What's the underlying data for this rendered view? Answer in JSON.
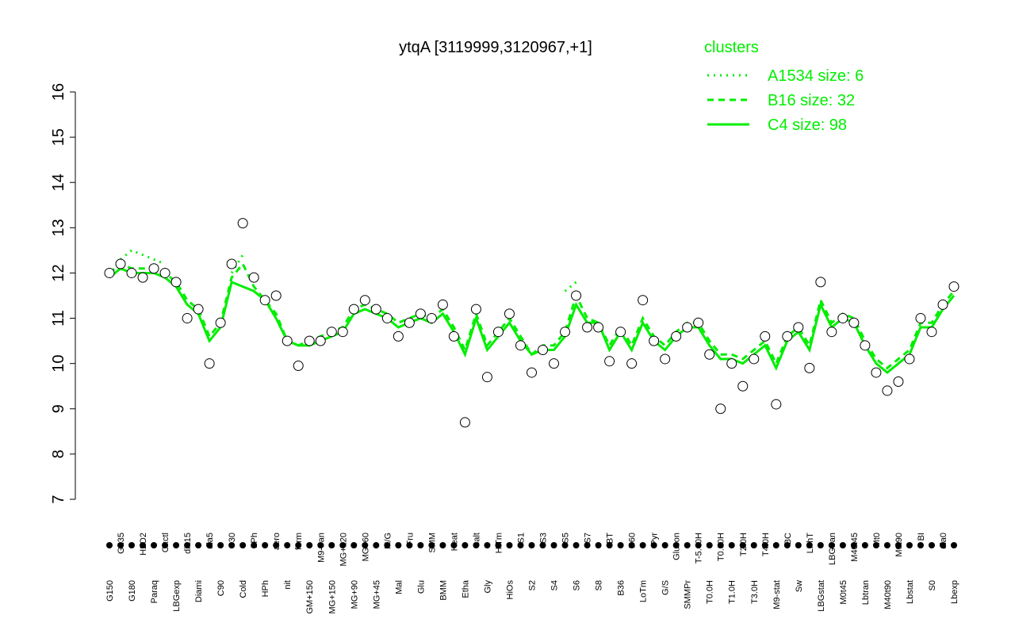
{
  "chart_data": {
    "type": "line",
    "title": "ytqA [3119999,3120967,+1]",
    "legend_title": "clusters",
    "categories": [
      "G150",
      "G135",
      "G180",
      "H2O2",
      "Paraq",
      "Oxctl",
      "LBGexp",
      "dia15",
      "Diami",
      "dia5",
      "C90",
      "C30",
      "Cold",
      "LPh",
      "HPh",
      "aero",
      "nit",
      "ferm",
      "GM+150",
      "M9-tran",
      "MG+150",
      "MG+120",
      "MG+90",
      "MG+60",
      "MG+45",
      "M/G",
      "Mal",
      "Fru",
      "Glu",
      "SMM",
      "BMM",
      "Heat",
      "Etha",
      "Salt",
      "Gly",
      "HiTm",
      "HiOs",
      "S1",
      "S2",
      "S3",
      "S4",
      "S5",
      "S6",
      "S7",
      "S8",
      "BT",
      "B36",
      "B60",
      "LoTm",
      "Pyr",
      "G/S",
      "Glucon",
      "SMMPr",
      "T-5.40H",
      "T0.0H",
      "T0.30H",
      "T1.0H",
      "T2.0H",
      "T3.0H",
      "T4.0H",
      "M9-stat",
      "BC",
      "Sw",
      "LPhT",
      "LBGstat",
      "LBGtran",
      "M0t45",
      "M40t45",
      "Lbtran",
      "Mt0",
      "M40t90",
      "M0t90",
      "Lbstat",
      "BI",
      "S0",
      "dia0",
      "Lbexp"
    ],
    "values": [
      12.0,
      12.2,
      12.0,
      11.9,
      12.1,
      12.0,
      11.8,
      11.0,
      11.2,
      10.0,
      10.9,
      12.2,
      13.1,
      11.9,
      11.4,
      11.5,
      10.5,
      9.95,
      10.5,
      10.5,
      10.7,
      10.7,
      11.2,
      11.4,
      11.2,
      11.0,
      10.6,
      10.9,
      11.1,
      11.0,
      11.3,
      10.6,
      8.7,
      11.2,
      9.7,
      10.7,
      11.1,
      10.4,
      9.8,
      10.3,
      10.0,
      10.7,
      11.5,
      10.8,
      10.8,
      10.05,
      10.7,
      10.0,
      11.4,
      10.5,
      10.1,
      10.6,
      10.8,
      10.9,
      10.2,
      9.0,
      10.0,
      9.5,
      10.1,
      10.6,
      9.1,
      10.6,
      10.8,
      9.9,
      11.8,
      10.7,
      11.0,
      10.9,
      10.4,
      9.8,
      9.4,
      9.6,
      10.1,
      11.0,
      10.7,
      11.3,
      11.7
    ],
    "point_color": "#ffffff",
    "series": [
      {
        "name": "A1534 size: 6",
        "color": "#00ee00",
        "dash": "2,6",
        "values": [
          null,
          12.3,
          12.5,
          12.4,
          12.3,
          12.2,
          null,
          null,
          null,
          null,
          null,
          12.0,
          12.4,
          null,
          null,
          null,
          null,
          null,
          null,
          null,
          null,
          null,
          null,
          null,
          null,
          null,
          null,
          null,
          null,
          null,
          null,
          null,
          null,
          null,
          null,
          null,
          null,
          null,
          null,
          null,
          null,
          11.6,
          11.8,
          null,
          null,
          null,
          null,
          null,
          null,
          null,
          null,
          null,
          null,
          null,
          null,
          null,
          null,
          null,
          null,
          null,
          null,
          null,
          null,
          null,
          null,
          null,
          null,
          null,
          null,
          null,
          null,
          null,
          null,
          null,
          null,
          null,
          null
        ]
      },
      {
        "name": "B16 size: 32",
        "color": "#00ee00",
        "dash": "8,6",
        "values": [
          12.0,
          12.2,
          12.1,
          12.1,
          12.1,
          12.0,
          11.8,
          11.4,
          11.2,
          10.6,
          10.9,
          11.9,
          12.2,
          11.7,
          11.4,
          11.1,
          10.5,
          10.4,
          10.5,
          10.6,
          10.7,
          10.8,
          11.2,
          11.3,
          11.2,
          11.1,
          10.9,
          11.0,
          11.1,
          11.0,
          11.2,
          10.8,
          10.3,
          11.1,
          10.4,
          10.7,
          11.0,
          10.6,
          10.2,
          10.4,
          10.4,
          10.7,
          11.5,
          11.0,
          10.9,
          10.4,
          10.8,
          10.4,
          11.0,
          10.6,
          10.4,
          10.7,
          10.9,
          10.9,
          10.5,
          10.2,
          10.2,
          10.1,
          10.3,
          10.5,
          10.0,
          10.6,
          10.8,
          10.4,
          11.4,
          10.9,
          11.1,
          11.0,
          10.5,
          10.1,
          9.9,
          10.1,
          10.3,
          10.9,
          10.9,
          11.3,
          11.6
        ]
      },
      {
        "name": "C4 size: 98",
        "color": "#00ee00",
        "dash": "",
        "values": [
          11.9,
          12.1,
          12.0,
          12.0,
          12.0,
          11.9,
          11.7,
          11.3,
          11.1,
          10.5,
          10.8,
          11.8,
          11.7,
          11.6,
          11.4,
          11.0,
          10.5,
          10.4,
          10.4,
          10.5,
          10.6,
          10.7,
          11.1,
          11.2,
          11.1,
          11.0,
          10.8,
          10.9,
          11.0,
          10.9,
          11.1,
          10.7,
          10.2,
          11.0,
          10.3,
          10.6,
          10.9,
          10.5,
          10.2,
          10.3,
          10.3,
          10.6,
          11.3,
          10.9,
          10.9,
          10.3,
          10.7,
          10.3,
          10.9,
          10.5,
          10.3,
          10.6,
          10.8,
          10.8,
          10.4,
          10.1,
          10.1,
          10.0,
          10.2,
          10.4,
          9.9,
          10.5,
          10.7,
          10.3,
          11.3,
          10.8,
          11.0,
          10.9,
          10.4,
          10.0,
          9.8,
          10.0,
          10.2,
          10.8,
          10.8,
          11.2,
          11.5
        ]
      }
    ],
    "ylim": [
      7,
      16
    ],
    "yticks": [
      7,
      8,
      9,
      10,
      11,
      12,
      13,
      14,
      15,
      16
    ]
  }
}
